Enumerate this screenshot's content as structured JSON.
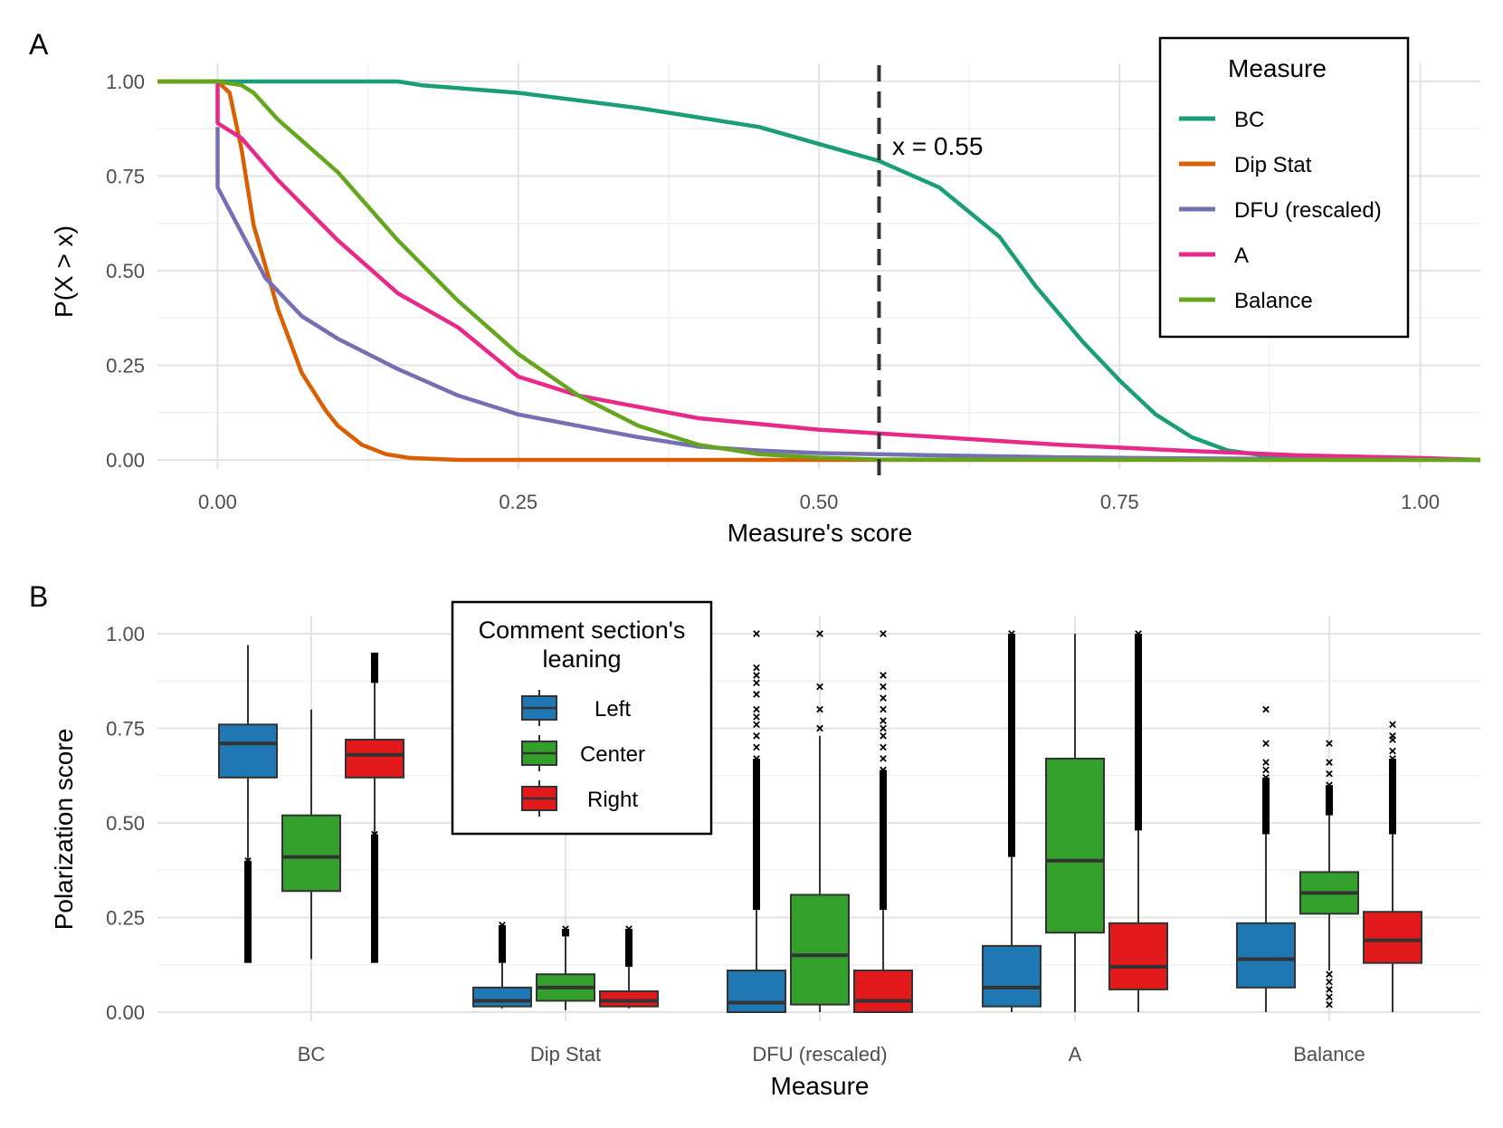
{
  "panel_a_tag": "A",
  "panel_b_tag": "B",
  "chart_data": [
    {
      "type": "line",
      "title": "",
      "xlabel": "Measure's score",
      "ylabel": "P(X > x)",
      "xlim": [
        -0.05,
        1.05
      ],
      "ylim": [
        0,
        1
      ],
      "x_ticks": [
        "0.00",
        "0.25",
        "0.50",
        "0.75",
        "1.00"
      ],
      "y_ticks": [
        "0.00",
        "0.25",
        "0.50",
        "0.75",
        "1.00"
      ],
      "legend_title": "Measure",
      "legend_position": "top-right",
      "annotation": {
        "x": 0.55,
        "label": "x = 0.55"
      },
      "series": [
        {
          "name": "BC",
          "color": "#1b9e77",
          "x": [
            -0.05,
            0.15,
            0.17,
            0.25,
            0.35,
            0.45,
            0.55,
            0.6,
            0.65,
            0.68,
            0.72,
            0.75,
            0.78,
            0.81,
            0.84,
            0.87,
            0.95,
            1.05
          ],
          "y": [
            1.0,
            1.0,
            0.99,
            0.97,
            0.93,
            0.88,
            0.79,
            0.72,
            0.59,
            0.46,
            0.31,
            0.21,
            0.12,
            0.06,
            0.025,
            0.012,
            0.003,
            0.0
          ]
        },
        {
          "name": "Dip Stat",
          "color": "#d95f02",
          "x": [
            -0.05,
            0.0,
            0.01,
            0.02,
            0.03,
            0.05,
            0.07,
            0.09,
            0.1,
            0.12,
            0.14,
            0.16,
            0.2,
            1.05
          ],
          "y": [
            1.0,
            1.0,
            0.97,
            0.82,
            0.62,
            0.4,
            0.23,
            0.13,
            0.09,
            0.04,
            0.015,
            0.005,
            0.0,
            0.0
          ]
        },
        {
          "name": "DFU (rescaled)",
          "color": "#7570b3",
          "x": [
            0.0,
            0.0,
            0.02,
            0.04,
            0.07,
            0.1,
            0.15,
            0.2,
            0.25,
            0.3,
            0.35,
            0.4,
            0.45,
            0.5,
            0.6,
            0.7,
            0.8,
            1.05
          ],
          "y": [
            0.88,
            0.72,
            0.6,
            0.48,
            0.38,
            0.32,
            0.24,
            0.17,
            0.12,
            0.09,
            0.06,
            0.035,
            0.025,
            0.018,
            0.012,
            0.007,
            0.004,
            0.0
          ]
        },
        {
          "name": "A",
          "color": "#e7298a",
          "x": [
            0.0,
            0.0,
            0.02,
            0.05,
            0.1,
            0.15,
            0.2,
            0.25,
            0.3,
            0.4,
            0.5,
            0.6,
            0.7,
            0.8,
            0.9,
            1.0,
            1.05
          ],
          "y": [
            1.0,
            0.89,
            0.85,
            0.74,
            0.58,
            0.44,
            0.35,
            0.22,
            0.17,
            0.11,
            0.08,
            0.06,
            0.04,
            0.025,
            0.012,
            0.005,
            0.0
          ]
        },
        {
          "name": "Balance",
          "color": "#66a61e",
          "x": [
            -0.05,
            0.0,
            0.02,
            0.03,
            0.05,
            0.1,
            0.15,
            0.2,
            0.25,
            0.3,
            0.35,
            0.4,
            0.45,
            0.5,
            0.55,
            1.05
          ],
          "y": [
            1.0,
            1.0,
            0.99,
            0.97,
            0.9,
            0.76,
            0.58,
            0.42,
            0.28,
            0.17,
            0.09,
            0.04,
            0.015,
            0.006,
            0.001,
            0.0
          ]
        }
      ]
    },
    {
      "type": "box",
      "title": "",
      "xlabel": "Measure",
      "ylabel": "Polarization score",
      "ylim": [
        0,
        1
      ],
      "y_ticks": [
        "0.00",
        "0.25",
        "0.50",
        "0.75",
        "1.00"
      ],
      "categories": [
        "BC",
        "Dip Stat",
        "DFU (rescaled)",
        "A",
        "Balance"
      ],
      "legend_title": "Comment section's leaning",
      "legend_title_lines": [
        "Comment section's",
        "leaning"
      ],
      "legend_position": "top-left",
      "groups": [
        {
          "name": "Left",
          "color": "#1f78b4"
        },
        {
          "name": "Center",
          "color": "#33a02c"
        },
        {
          "name": "Right",
          "color": "#e31a1c"
        }
      ],
      "boxes": [
        [
          {
            "q1": 0.62,
            "median": 0.71,
            "q3": 0.76,
            "whisker_low": 0.4,
            "whisker_high": 0.97,
            "outlier_range": [
              0.13,
              0.4
            ]
          },
          {
            "q1": 0.32,
            "median": 0.41,
            "q3": 0.52,
            "whisker_low": 0.14,
            "whisker_high": 0.8,
            "outlier_range": null
          },
          {
            "q1": 0.62,
            "median": 0.68,
            "q3": 0.72,
            "whisker_low": 0.47,
            "whisker_high": 0.87,
            "outlier_range": [
              0.13,
              0.47
            ],
            "outlier_high": [
              0.87,
              0.95
            ]
          }
        ],
        [
          {
            "q1": 0.015,
            "median": 0.03,
            "q3": 0.065,
            "whisker_low": 0.01,
            "whisker_high": 0.13,
            "outlier_range": [
              0.13,
              0.23
            ]
          },
          {
            "q1": 0.03,
            "median": 0.065,
            "q3": 0.1,
            "whisker_low": 0.005,
            "whisker_high": 0.2,
            "outlier_range": [
              0.2,
              0.22
            ]
          },
          {
            "q1": 0.015,
            "median": 0.03,
            "q3": 0.055,
            "whisker_low": 0.01,
            "whisker_high": 0.12,
            "outlier_range": [
              0.12,
              0.22
            ]
          }
        ],
        [
          {
            "q1": 0.0,
            "median": 0.025,
            "q3": 0.11,
            "whisker_low": 0.0,
            "whisker_high": 0.27,
            "outlier_range": [
              0.27,
              0.67
            ],
            "outliers": [
              0.7,
              0.73,
              0.76,
              0.78,
              0.8,
              0.84,
              0.87,
              0.89,
              0.91,
              1.0
            ]
          },
          {
            "q1": 0.02,
            "median": 0.15,
            "q3": 0.31,
            "whisker_low": 0.0,
            "whisker_high": 0.73,
            "outliers": [
              0.75,
              0.8,
              0.86,
              1.0
            ]
          },
          {
            "q1": 0.0,
            "median": 0.03,
            "q3": 0.11,
            "whisker_low": 0.0,
            "whisker_high": 0.27,
            "outlier_range": [
              0.27,
              0.64
            ],
            "outliers": [
              0.67,
              0.7,
              0.73,
              0.75,
              0.77,
              0.8,
              0.83,
              0.86,
              0.89,
              1.0
            ]
          }
        ],
        [
          {
            "q1": 0.015,
            "median": 0.065,
            "q3": 0.175,
            "whisker_low": 0.0,
            "whisker_high": 0.41,
            "outlier_range": [
              0.41,
              1.0
            ]
          },
          {
            "q1": 0.21,
            "median": 0.4,
            "q3": 0.67,
            "whisker_low": 0.0,
            "whisker_high": 1.0,
            "outlier_range": null
          },
          {
            "q1": 0.06,
            "median": 0.12,
            "q3": 0.235,
            "whisker_low": 0.0,
            "whisker_high": 0.48,
            "outlier_range": [
              0.48,
              1.0
            ]
          }
        ],
        [
          {
            "q1": 0.065,
            "median": 0.14,
            "q3": 0.235,
            "whisker_low": 0.0,
            "whisker_high": 0.47,
            "outlier_range": [
              0.47,
              0.62
            ],
            "outliers": [
              0.64,
              0.66,
              0.71,
              0.8
            ]
          },
          {
            "q1": 0.26,
            "median": 0.315,
            "q3": 0.37,
            "whisker_low": 0.11,
            "whisker_high": 0.52,
            "outlier_range": [
              0.52,
              0.6
            ],
            "outliers": [
              0.02,
              0.04,
              0.06,
              0.08,
              0.1,
              0.63,
              0.66,
              0.71
            ]
          },
          {
            "q1": 0.13,
            "median": 0.19,
            "q3": 0.265,
            "whisker_low": 0.0,
            "whisker_high": 0.47,
            "outlier_range": [
              0.47,
              0.67
            ],
            "outliers": [
              0.69,
              0.72,
              0.73,
              0.76
            ]
          }
        ]
      ]
    }
  ]
}
